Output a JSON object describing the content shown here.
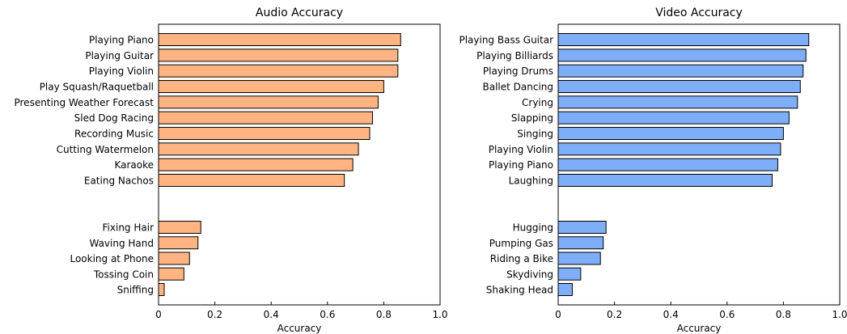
{
  "chart_data": [
    {
      "type": "bar",
      "orientation": "horizontal",
      "title": "Audio Accuracy",
      "xlabel": "Accuracy",
      "xlim": [
        0,
        1.0
      ],
      "xticks": [
        "0",
        "0.2",
        "0.4",
        "0.6",
        "0.8",
        "1.0"
      ],
      "bar_color": "#ffb482",
      "grid": false,
      "categories": [
        "Playing Piano",
        "Playing Guitar",
        "Playing Violin",
        "Play Squash/Raquetball",
        "Presenting Weather Forecast",
        "Sled Dog Racing",
        "Recording Music",
        "Cutting Watermelon",
        "Karaoke",
        "Eating Nachos",
        "Fixing Hair",
        "Waving Hand",
        "Looking at Phone",
        "Tossing Coin",
        "Sniffing"
      ],
      "values": [
        0.86,
        0.85,
        0.85,
        0.8,
        0.78,
        0.76,
        0.75,
        0.71,
        0.69,
        0.66,
        0.15,
        0.14,
        0.11,
        0.09,
        0.02
      ]
    },
    {
      "type": "bar",
      "orientation": "horizontal",
      "title": "Video Accuracy",
      "xlabel": "Accuracy",
      "xlim": [
        0,
        1.0
      ],
      "xticks": [
        "0",
        "0.2",
        "0.4",
        "0.6",
        "0.8",
        "1.0"
      ],
      "bar_color": "#7eaef8",
      "grid": false,
      "categories": [
        "Playing Bass Guitar",
        "Playing Billiards",
        "Playing Drums",
        "Ballet Dancing",
        "Crying",
        "Slapping",
        "Singing",
        "Playing Violin",
        "Playing Piano",
        "Laughing",
        "Hugging",
        "Pumping Gas",
        "Riding a Bike",
        "Skydiving",
        "Shaking Head"
      ],
      "values": [
        0.89,
        0.88,
        0.87,
        0.86,
        0.85,
        0.82,
        0.8,
        0.79,
        0.78,
        0.76,
        0.17,
        0.16,
        0.15,
        0.08,
        0.05
      ]
    }
  ]
}
